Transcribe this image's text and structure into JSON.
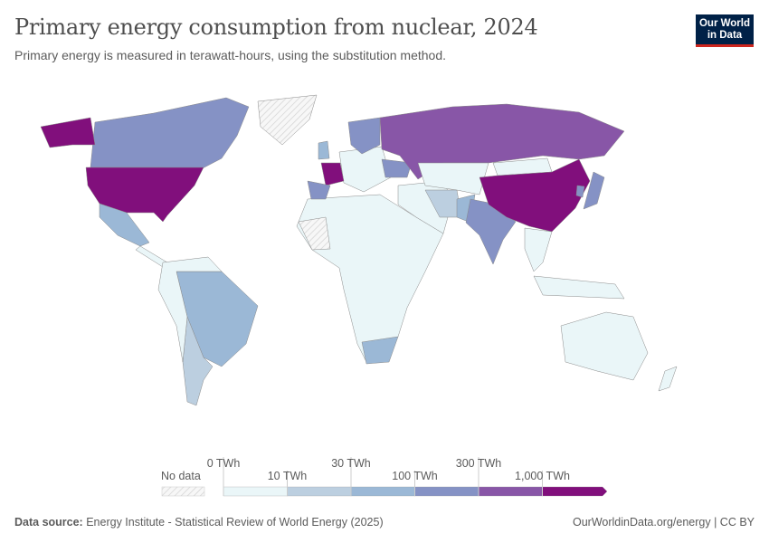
{
  "header": {
    "title": "Primary energy consumption from nuclear, 2024",
    "subtitle": "Primary energy is measured in terawatt-hours, using the substitution method.",
    "logo_line1": "Our World",
    "logo_line2": "in Data"
  },
  "legend": {
    "no_data_label": "No data",
    "bins": [
      {
        "from": "0 TWh",
        "to": "10 TWh",
        "color": "#eaf6f8"
      },
      {
        "from": "10 TWh",
        "to": "30 TWh",
        "color": "#bccfe0"
      },
      {
        "from": "30 TWh",
        "to": "100 TWh",
        "color": "#9bb8d6"
      },
      {
        "from": "100 TWh",
        "to": "300 TWh",
        "color": "#8592c5"
      },
      {
        "from": "300 TWh",
        "to": "1,000 TWh",
        "color": "#8856a7"
      },
      {
        "from": "1,000 TWh",
        "to": "",
        "color": "#810f7c"
      }
    ],
    "tick_labels": [
      "0 TWh",
      "10 TWh",
      "30 TWh",
      "100 TWh",
      "300 TWh",
      "1,000 TWh"
    ]
  },
  "map": {
    "regions": [
      {
        "name": "Canada",
        "bin": 3
      },
      {
        "name": "United States",
        "bin": 5
      },
      {
        "name": "Alaska",
        "bin": 5
      },
      {
        "name": "Greenland",
        "bin": -1
      },
      {
        "name": "Mexico",
        "bin": 2
      },
      {
        "name": "Central America",
        "bin": 0
      },
      {
        "name": "Brazil",
        "bin": 2
      },
      {
        "name": "Argentina",
        "bin": 1
      },
      {
        "name": "South America other",
        "bin": 0
      },
      {
        "name": "Africa",
        "bin": 0
      },
      {
        "name": "South Africa",
        "bin": 2
      },
      {
        "name": "Sahara no data",
        "bin": -1
      },
      {
        "name": "Europe other",
        "bin": 0
      },
      {
        "name": "France",
        "bin": 5
      },
      {
        "name": "Spain",
        "bin": 3
      },
      {
        "name": "United Kingdom",
        "bin": 2
      },
      {
        "name": "Sweden Finland",
        "bin": 3
      },
      {
        "name": "Ukraine",
        "bin": 3
      },
      {
        "name": "Russia",
        "bin": 4
      },
      {
        "name": "Middle East",
        "bin": 0
      },
      {
        "name": "Iran",
        "bin": 1
      },
      {
        "name": "Pakistan",
        "bin": 2
      },
      {
        "name": "Central Asia",
        "bin": 0
      },
      {
        "name": "India",
        "bin": 3
      },
      {
        "name": "Mongolia",
        "bin": 0
      },
      {
        "name": "China",
        "bin": 5
      },
      {
        "name": "Japan",
        "bin": 3
      },
      {
        "name": "South Korea",
        "bin": 3
      },
      {
        "name": "Southeast Asia",
        "bin": 0
      },
      {
        "name": "Indonesia",
        "bin": 0
      },
      {
        "name": "Australia",
        "bin": 0
      },
      {
        "name": "New Zealand",
        "bin": 0
      }
    ]
  },
  "footer": {
    "source_label": "Data source:",
    "source": "Energy Institute - Statistical Review of World Energy (2025)",
    "link": "OurWorldinData.org/energy | CC BY"
  }
}
